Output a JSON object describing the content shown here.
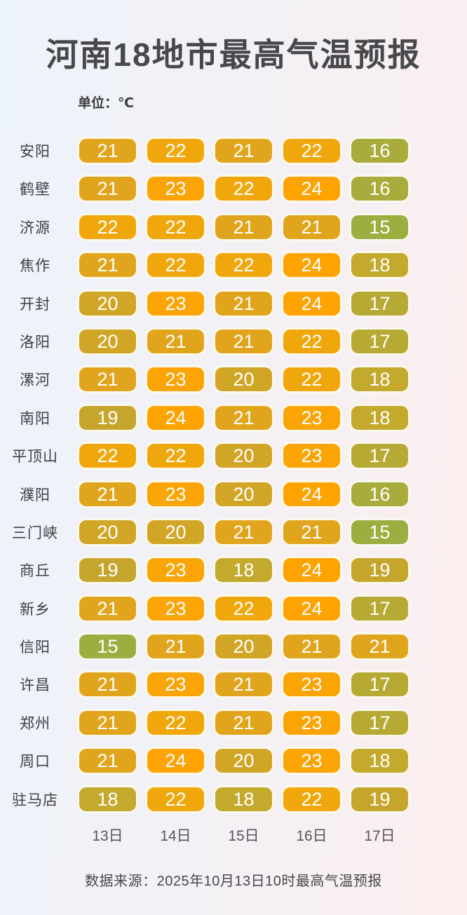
{
  "page": {
    "title": "河南18地市最高气温预报",
    "unit_label": "单位：℃",
    "source_note": "数据来源：2025年10月13日10时最高气温预报",
    "background_left": "#edf3fb",
    "background_right": "#fdeeee"
  },
  "chart_data": {
    "type": "heatmap",
    "title": "河南18地市最高气温预报",
    "unit": "℃",
    "columns": [
      "13日",
      "14日",
      "15日",
      "16日",
      "17日"
    ],
    "rows": [
      {
        "city": "安阳",
        "values": [
          21,
          22,
          21,
          22,
          16
        ]
      },
      {
        "city": "鹤壁",
        "values": [
          21,
          23,
          22,
          24,
          16
        ]
      },
      {
        "city": "济源",
        "values": [
          22,
          22,
          21,
          21,
          15
        ]
      },
      {
        "city": "焦作",
        "values": [
          21,
          22,
          22,
          24,
          18
        ]
      },
      {
        "city": "开封",
        "values": [
          20,
          23,
          21,
          24,
          17
        ]
      },
      {
        "city": "洛阳",
        "values": [
          20,
          21,
          21,
          22,
          17
        ]
      },
      {
        "city": "漯河",
        "values": [
          21,
          23,
          20,
          22,
          18
        ]
      },
      {
        "city": "南阳",
        "values": [
          19,
          24,
          21,
          23,
          18
        ]
      },
      {
        "city": "平顶山",
        "values": [
          22,
          22,
          20,
          23,
          17
        ]
      },
      {
        "city": "濮阳",
        "values": [
          21,
          23,
          20,
          24,
          16
        ]
      },
      {
        "city": "三门峡",
        "values": [
          20,
          20,
          21,
          21,
          15
        ]
      },
      {
        "city": "商丘",
        "values": [
          19,
          23,
          18,
          24,
          19
        ]
      },
      {
        "city": "新乡",
        "values": [
          21,
          23,
          22,
          24,
          17
        ]
      },
      {
        "city": "信阳",
        "values": [
          15,
          21,
          20,
          21,
          21
        ]
      },
      {
        "city": "许昌",
        "values": [
          21,
          23,
          21,
          23,
          17
        ]
      },
      {
        "city": "郑州",
        "values": [
          21,
          22,
          21,
          23,
          17
        ]
      },
      {
        "city": "周口",
        "values": [
          21,
          24,
          20,
          23,
          18
        ]
      },
      {
        "city": "驻马店",
        "values": [
          18,
          22,
          18,
          22,
          19
        ]
      }
    ],
    "value_range": [
      15,
      24
    ],
    "temp_colors": {
      "15": "#9dae41",
      "16": "#a9ac3c",
      "17": "#b7aa34",
      "18": "#c3a92c",
      "19": "#c6a52d",
      "20": "#d1a526",
      "21": "#e0a51c",
      "22": "#f0a70c",
      "23": "#fba405",
      "24": "#ffa300"
    },
    "cell_text_color": "#ffffff",
    "legend": "none",
    "grid": false
  }
}
